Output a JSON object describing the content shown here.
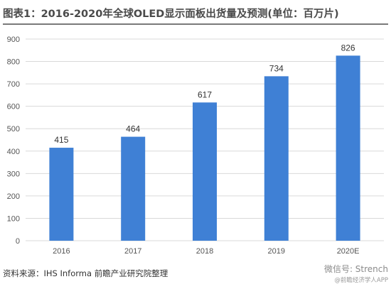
{
  "chart_data": {
    "type": "bar",
    "title": "图表1：2016-2020年全球OLED显示面板出货量及预测(单位：百万片)",
    "categories": [
      "2016",
      "2017",
      "2018",
      "2019",
      "2020E"
    ],
    "values": [
      415,
      464,
      617,
      734,
      826
    ],
    "data_labels": [
      "415",
      "464",
      "617",
      "734",
      "826"
    ],
    "yticks": [
      "0",
      "100",
      "200",
      "300",
      "400",
      "500",
      "600",
      "700",
      "800",
      "900"
    ],
    "ylim": [
      0,
      900
    ],
    "xlabel": "",
    "ylabel": "",
    "grid": true,
    "bar_color": "#3f80d5",
    "grid_color": "#d9d9d9"
  },
  "source": "资料来源：IHS Informa 前瞻产业研究院整理",
  "watermark": {
    "text": "微信号: Strench",
    "sub": "@前瞻经济学人APP"
  }
}
